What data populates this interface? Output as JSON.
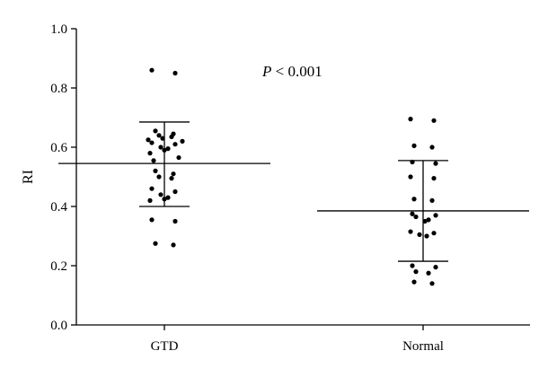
{
  "chart_data": {
    "type": "scatter",
    "ylabel": "RI",
    "ylim": [
      0.0,
      1.0
    ],
    "yticks": [
      "0.0",
      "0.2",
      "0.4",
      "0.6",
      "0.8",
      "1.0"
    ],
    "categories": [
      "GTD",
      "Normal"
    ],
    "annotation": {
      "italic": "P",
      "rest": " < 0.001"
    },
    "groups": [
      {
        "category": "GTD",
        "mean": 0.545,
        "sd_upper": 0.685,
        "sd_lower": 0.4,
        "points": [
          0.86,
          0.85,
          0.655,
          0.645,
          0.64,
          0.635,
          0.63,
          0.625,
          0.62,
          0.615,
          0.61,
          0.6,
          0.595,
          0.59,
          0.58,
          0.565,
          0.555,
          0.52,
          0.51,
          0.5,
          0.495,
          0.46,
          0.45,
          0.44,
          0.43,
          0.425,
          0.42,
          0.355,
          0.35,
          0.275,
          0.27
        ]
      },
      {
        "category": "Normal",
        "mean": 0.385,
        "sd_upper": 0.555,
        "sd_lower": 0.215,
        "points": [
          0.695,
          0.69,
          0.605,
          0.6,
          0.55,
          0.545,
          0.5,
          0.495,
          0.425,
          0.42,
          0.375,
          0.37,
          0.365,
          0.355,
          0.35,
          0.315,
          0.31,
          0.305,
          0.3,
          0.2,
          0.195,
          0.18,
          0.175,
          0.145,
          0.14
        ]
      }
    ],
    "colors": {
      "points": "#000000",
      "lines": "#000000"
    }
  }
}
